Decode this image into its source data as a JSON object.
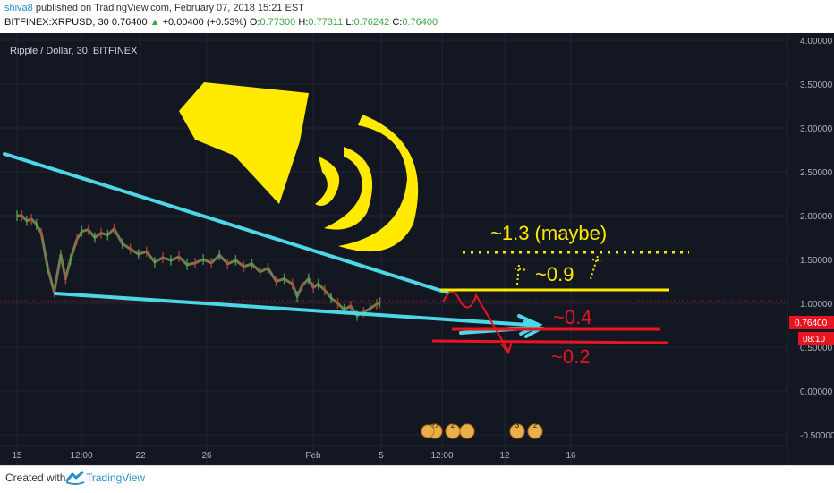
{
  "header": {
    "author": "shiva8",
    "published_text": "published on TradingView.com, February 07, 2018 15:21 EST",
    "symbol": "BITFINEX:XRPUSD, 30",
    "close_price": "0.76400",
    "change_arrow": "▲",
    "change": "+0.00400 (+0.53%)",
    "o_label": "O:",
    "o_value": "0.77300",
    "h_label": "H:",
    "h_value": "0.77311",
    "l_label": "L:",
    "l_value": "0.76242",
    "c_label": "C:",
    "c_value": "0.76400"
  },
  "chart_title": "Ripple / Dollar, 30, BITFINEX",
  "footer": {
    "created_with": "Created with",
    "brand": "TradingView"
  },
  "colors": {
    "background": "#131722",
    "candles": "#8a8a5a",
    "trendline": "#4dd6e6",
    "yellow": "#ffea00",
    "red": "#e8141f",
    "price_tag": "#e8141f"
  },
  "chart_data": {
    "type": "line",
    "title": "Ripple / Dollar, 30, BITFINEX",
    "ylim": [
      -0.5,
      4.0
    ],
    "y_ticks": [
      "4.00000",
      "3.50000",
      "3.00000",
      "2.50000",
      "2.00000",
      "1.50000",
      "1.00000",
      "0.50000",
      "0.00000",
      "-0.50000"
    ],
    "x_tick_labels": [
      "15",
      "12:00",
      "22",
      "26",
      "Feb",
      "5",
      "12:00",
      "12",
      "16"
    ],
    "current_price": "0.76400",
    "timer": "08:10",
    "series": [
      {
        "x": [
          15.0,
          15.3,
          15.6,
          15.9,
          16.2,
          16.5,
          16.9,
          17.3,
          17.7,
          18.0,
          18.3,
          18.7,
          19.0,
          19.4,
          19.8,
          20.2,
          20.6,
          21.0,
          21.5,
          22.0,
          22.5,
          23.0,
          23.5,
          24.0,
          24.5,
          25.0,
          25.5,
          26.0,
          26.5,
          27.0,
          27.5,
          28.0,
          28.5,
          29.0,
          29.5,
          30.0,
          30.5,
          31.0,
          31.5,
          32.0,
          32.3,
          32.6,
          33.0,
          33.3,
          33.6,
          34.0,
          34.4,
          34.8,
          35.2,
          35.6,
          36.0,
          36.4,
          36.8,
          37.2,
          37.4
        ],
        "values": [
          2.0,
          2.0,
          1.94,
          1.96,
          1.9,
          1.8,
          1.4,
          1.13,
          1.55,
          1.28,
          1.5,
          1.73,
          1.82,
          1.84,
          1.75,
          1.8,
          1.78,
          1.85,
          1.68,
          1.62,
          1.56,
          1.59,
          1.47,
          1.52,
          1.49,
          1.53,
          1.44,
          1.46,
          1.5,
          1.46,
          1.55,
          1.45,
          1.49,
          1.42,
          1.45,
          1.36,
          1.4,
          1.25,
          1.28,
          1.22,
          1.08,
          1.2,
          1.28,
          1.18,
          1.22,
          1.15,
          1.06,
          1.0,
          0.93,
          0.97,
          0.86,
          0.9,
          0.94,
          0.99,
          1.01
        ]
      }
    ],
    "annotations": [
      "~1.3 (maybe)",
      "~0.9",
      "~0.4",
      "~0.2"
    ]
  },
  "event_markers": [
    "27",
    "2",
    "3",
    "2"
  ]
}
